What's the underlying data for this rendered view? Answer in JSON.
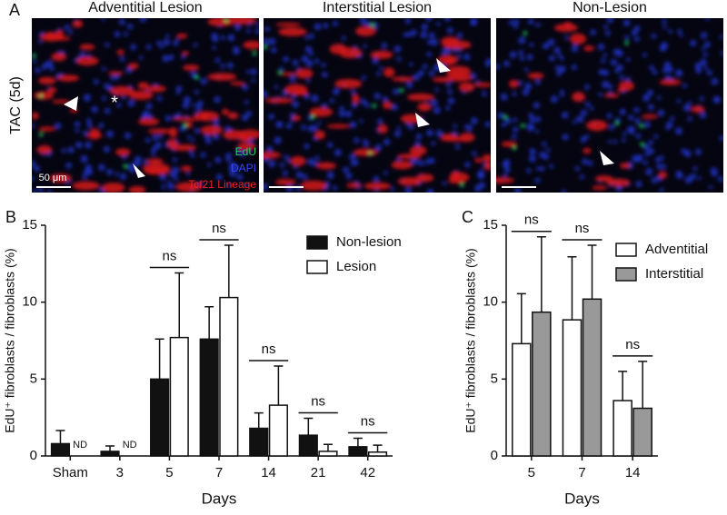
{
  "panel_a": {
    "panel_label": "A",
    "row_label": "TAC (5d)",
    "images": [
      {
        "title": "Adventitial Lesion"
      },
      {
        "title": "Interstitial Lesion"
      },
      {
        "title": "Non-Lesion"
      }
    ],
    "asterisk": "*",
    "scale_label": "50 μm",
    "stain_labels": [
      {
        "text": "EdU",
        "color": "#22cc55"
      },
      {
        "text": "DAPI",
        "color": "#3344ff"
      },
      {
        "text": "Tcf21 Lineage",
        "color": "#ee2222"
      }
    ]
  },
  "chart_data": [
    {
      "type": "bar",
      "panel_label": "B",
      "xlabel": "Days",
      "ylabel": "EdU⁺ fibroblasts / fibroblasts (%)",
      "categories": [
        "Sham",
        "3",
        "5",
        "7",
        "14",
        "21",
        "42"
      ],
      "series": [
        {
          "name": "Non-lesion",
          "color": "#111111",
          "values": [
            0.8,
            0.3,
            5.0,
            7.6,
            1.8,
            1.35,
            0.6
          ],
          "errors": [
            0.85,
            0.35,
            2.6,
            2.1,
            1.0,
            1.1,
            0.55
          ]
        },
        {
          "name": "Lesion",
          "color": "#ffffff",
          "values": [
            null,
            null,
            7.7,
            10.3,
            3.3,
            0.3,
            0.25
          ],
          "errors": [
            null,
            null,
            4.2,
            3.4,
            2.55,
            0.45,
            0.45
          ]
        }
      ],
      "missing_labels": [
        "ND",
        "ND",
        null,
        null,
        null,
        null,
        null
      ],
      "significance": [
        null,
        null,
        "ns",
        "ns",
        "ns",
        "ns",
        "ns"
      ],
      "ylim": [
        0,
        15
      ],
      "yticks": [
        0,
        5,
        10,
        15
      ],
      "legend": "upper right"
    },
    {
      "type": "bar",
      "panel_label": "C",
      "xlabel": "Days",
      "ylabel": "EdU⁺ fibroblasts / fibroblasts (%)",
      "categories": [
        "5",
        "7",
        "14"
      ],
      "series": [
        {
          "name": "Adventitial",
          "color": "#ffffff",
          "values": [
            7.3,
            8.85,
            3.6
          ],
          "errors": [
            3.25,
            4.1,
            1.9
          ]
        },
        {
          "name": "Interstitial",
          "color": "#999999",
          "values": [
            9.35,
            10.2,
            3.1
          ],
          "errors": [
            4.9,
            3.5,
            3.05
          ]
        }
      ],
      "significance": [
        "ns",
        "ns",
        "ns"
      ],
      "ylim": [
        0,
        15
      ],
      "yticks": [
        0,
        5,
        10,
        15
      ],
      "legend": "upper right"
    }
  ]
}
